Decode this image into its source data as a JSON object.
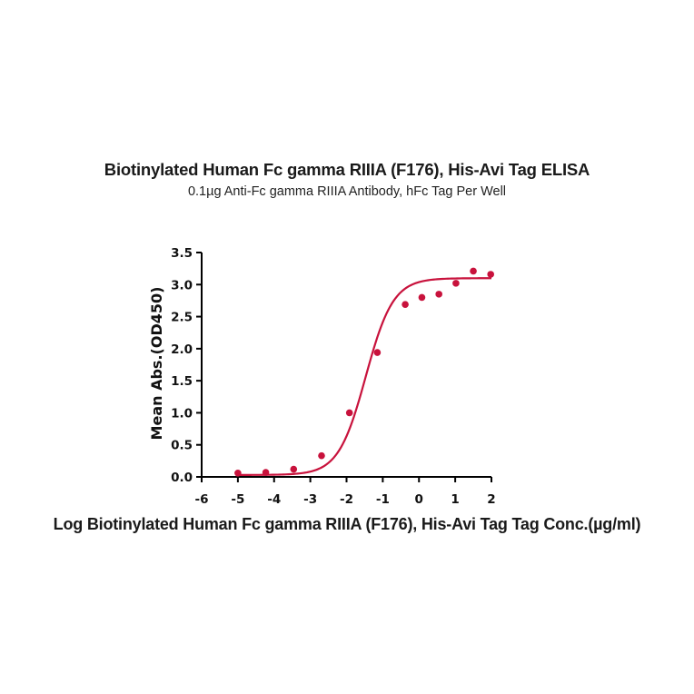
{
  "chart_data": {
    "type": "scatter",
    "title": "Biotinylated Human Fc gamma RIIIA (F176), His-Avi Tag ELISA",
    "subtitle": "0.1µg Anti-Fc gamma RIIIA Antibody, hFc Tag Per Well",
    "xlabel": "Log Biotinylated Human Fc gamma RIIIA (F176), His-Avi Tag Tag Conc.(µg/ml)",
    "ylabel": "Mean Abs.(OD450)",
    "xlim": [
      -6,
      2
    ],
    "ylim": [
      0,
      3.5
    ],
    "xticks": [
      -6,
      -5,
      -4,
      -3,
      -2,
      -1,
      0,
      1,
      2
    ],
    "yticks": [
      "0.0",
      "0.5",
      "1.0",
      "1.5",
      "2.0",
      "2.5",
      "3.0",
      "3.5"
    ],
    "grid": false,
    "legend": null,
    "color": "#C8123C",
    "series": [
      {
        "name": "Mean Abs.(OD450)",
        "x": [
          -5.0,
          -4.23,
          -3.46,
          -2.69,
          -1.92,
          -1.15,
          -0.38,
          0.08,
          0.55,
          1.02,
          1.5,
          1.98
        ],
        "y": [
          0.06,
          0.07,
          0.12,
          0.33,
          1.0,
          1.94,
          2.69,
          2.8,
          2.85,
          3.02,
          3.21,
          3.16
        ]
      }
    ],
    "fit": {
      "model": "4PL",
      "bottom": 0.03,
      "top": 3.1,
      "log_ec50": -1.47,
      "hill": 1.15,
      "x_range": [
        -5,
        2
      ]
    }
  }
}
